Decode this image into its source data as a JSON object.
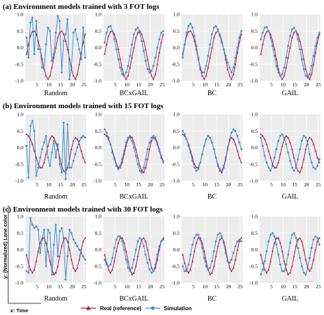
{
  "figure": {
    "y_axis_label": "y: (Normalized) Lane color",
    "x_axis_label": "x: Time",
    "legend": [
      {
        "label": "Real (reference)",
        "color": "#b0134b",
        "marker": "triangle"
      },
      {
        "label": "Simulation",
        "color": "#3a8dc8",
        "marker": "circle"
      }
    ],
    "colors": {
      "real": "#b0134b",
      "sim": "#3a8dc8",
      "panel_bg": "#ececec",
      "grid": "#ffffff"
    }
  },
  "chart_data": [
    {
      "section": "(a) Environment models trained with 3 FOT logs",
      "type": "line",
      "xlim": [
        0,
        26
      ],
      "ylim": [
        -1.0,
        1.0
      ],
      "x_ticks": [
        "5",
        "10",
        "15",
        "20",
        "25"
      ],
      "y_ticks": [
        "1.0",
        "0.5",
        "0.0",
        "-0.5",
        "-1.0"
      ],
      "real": [
        -0.2,
        0.1,
        0.35,
        0.48,
        0.5,
        0.4,
        0.2,
        -0.05,
        -0.35,
        -0.65,
        -0.85,
        -0.95,
        -0.85,
        -0.6,
        -0.3,
        0.0,
        0.3,
        0.45,
        0.5,
        0.4,
        0.2,
        -0.05,
        -0.35,
        -0.65,
        -0.85,
        -0.95,
        -0.8,
        -0.5,
        -0.15,
        0.15,
        0.4
      ],
      "panels": [
        {
          "label": "Random",
          "sim": [
            0.3,
            -0.3,
            0.75,
            0.9,
            -0.2,
            0.8,
            -0.05,
            -0.05,
            -0.6,
            -0.65,
            0.1,
            0.6,
            0.5,
            -0.4,
            -0.2,
            0.45,
            0.95,
            0.8,
            -0.75,
            0.2,
            0.4,
            0.85,
            -0.95,
            -0.6,
            0.45,
            0.55,
            0.25,
            -0.05,
            -0.35,
            0.6,
            -0.3
          ]
        },
        {
          "label": "BCxGAIL",
          "sim": [
            0.15,
            0.45,
            0.62,
            0.65,
            0.5,
            0.25,
            -0.05,
            -0.35,
            -0.6,
            -0.8,
            -0.85,
            -0.75,
            -0.55,
            -0.25,
            0.1,
            0.4,
            0.55,
            0.6,
            0.45,
            0.2,
            -0.1,
            -0.4,
            -0.65,
            -0.75,
            -0.7,
            -0.55,
            -0.3,
            0.0,
            0.25,
            0.45,
            0.5
          ]
        },
        {
          "label": "BC",
          "sim": [
            -0.3,
            0.1,
            0.45,
            0.65,
            0.72,
            0.6,
            0.35,
            0.05,
            -0.3,
            -0.6,
            -0.75,
            -0.75,
            -0.55,
            -0.25,
            0.1,
            0.4,
            0.6,
            0.65,
            0.55,
            0.35,
            0.15,
            -0.05,
            -0.25,
            -0.45,
            -0.6,
            -0.75,
            -0.6,
            -0.3,
            0.0,
            0.3,
            0.5
          ]
        },
        {
          "label": "GAIL",
          "sim": [
            0.25,
            0.45,
            0.6,
            0.62,
            0.5,
            0.3,
            0.05,
            -0.25,
            -0.55,
            -0.75,
            -0.85,
            -0.8,
            -0.6,
            -0.3,
            0.05,
            0.35,
            0.55,
            0.6,
            0.5,
            0.25,
            -0.05,
            -0.35,
            -0.65,
            -0.85,
            -0.9,
            -0.8,
            -0.55,
            -0.25,
            0.05,
            0.3,
            0.45
          ]
        }
      ]
    },
    {
      "section": "(b) Environment models trained with 15 FOT logs",
      "type": "line",
      "xlim": [
        0,
        26
      ],
      "ylim": [
        -1.0,
        1.0
      ],
      "x_ticks": [
        "5",
        "10",
        "15",
        "20",
        "25"
      ],
      "y_ticks": [
        "1.0",
        "0.5",
        "0.0",
        "-0.5",
        "-1.0"
      ],
      "real": [
        0.4,
        0.35,
        0.25,
        0.1,
        -0.1,
        -0.3,
        -0.5,
        -0.6,
        -0.6,
        -0.45,
        -0.2,
        0.05,
        0.25,
        0.35,
        0.3,
        0.15,
        -0.05,
        -0.3,
        -0.55,
        -0.7,
        -0.75,
        -0.6,
        -0.35,
        -0.05,
        0.2,
        0.3,
        0.25,
        0.1,
        -0.1,
        -0.3,
        -0.45
      ],
      "panels": [
        {
          "label": "Random",
          "sim": [
            0.05,
            -0.9,
            0.65,
            0.8,
            0.5,
            -0.85,
            -0.6,
            -0.3,
            -0.05,
            0.15,
            0.35,
            -0.3,
            -0.55,
            -0.15,
            0.2,
            -0.3,
            0.1,
            -0.5,
            -0.75,
            0.75,
            -0.95,
            0.7,
            -0.6,
            -0.6,
            -0.4,
            -0.2,
            0.0,
            0.2,
            0.3,
            0.35,
            0.3
          ]
        },
        {
          "label": "BCxGAIL",
          "sim": [
            0.55,
            0.45,
            0.3,
            0.1,
            -0.15,
            -0.35,
            -0.55,
            -0.65,
            -0.55,
            -0.35,
            -0.1,
            0.15,
            0.3,
            0.3,
            0.2,
            0.0,
            -0.25,
            -0.5,
            -0.7,
            -0.75,
            -0.6,
            -0.35,
            -0.05,
            0.15,
            0.3,
            0.35,
            0.3,
            0.15,
            -0.05,
            -0.25,
            -0.4
          ]
        },
        {
          "label": "BC",
          "sim": [
            0.5,
            0.4,
            0.25,
            0.05,
            -0.15,
            -0.4,
            -0.6,
            -0.7,
            -0.65,
            -0.45,
            -0.2,
            0.05,
            0.25,
            0.35,
            0.3,
            0.15,
            -0.05,
            -0.3,
            -0.5,
            -0.65,
            -0.7,
            -0.55,
            -0.3,
            0.0,
            0.25,
            0.45,
            0.55,
            0.5,
            0.35,
            0.15,
            -0.05
          ]
        },
        {
          "label": "GAIL",
          "sim": [
            0.3,
            0.05,
            -0.25,
            -0.45,
            -0.6,
            -0.7,
            -0.55,
            -0.3,
            -0.05,
            0.2,
            0.35,
            0.4,
            0.3,
            0.1,
            -0.15,
            -0.4,
            -0.6,
            -0.7,
            -0.6,
            -0.35,
            -0.05,
            0.2,
            0.35,
            0.3,
            0.1,
            -0.2,
            -0.45,
            -0.6,
            -0.65,
            -0.55,
            -0.35
          ]
        }
      ]
    },
    {
      "section": "(c) Environment models trained with 30 FOT logs",
      "type": "line",
      "xlim": [
        0,
        26
      ],
      "ylim": [
        -1.0,
        1.0
      ],
      "x_ticks": [
        "5",
        "10",
        "15",
        "20",
        "25"
      ],
      "y_ticks": [
        "1.0",
        "0.5",
        "0.0",
        "-0.5",
        "-1.0"
      ],
      "real": [
        -0.15,
        -0.4,
        -0.6,
        -0.7,
        -0.6,
        -0.35,
        -0.05,
        0.2,
        0.35,
        0.35,
        0.2,
        -0.05,
        -0.35,
        -0.6,
        -0.75,
        -0.7,
        -0.5,
        -0.2,
        0.1,
        0.3,
        0.35,
        0.25,
        0.0,
        -0.3,
        -0.55,
        -0.65,
        -0.55,
        -0.3,
        0.0,
        0.25,
        0.35
      ],
      "panels": [
        {
          "label": "Random",
          "sim": [
            -0.65,
            -0.7,
            0.95,
            0.75,
            0.65,
            0.7,
            0.6,
            -0.1,
            0.3,
            0.6,
            -0.5,
            0.6,
            0.5,
            -0.75,
            0.15,
            0.75,
            -0.2,
            0.55,
            0.65,
            0.35,
            -0.9,
            -0.2,
            0.6,
            0.5,
            0.3,
            0.2,
            0.1,
            0.0,
            -0.1,
            -0.2,
            -0.3
          ]
        },
        {
          "label": "BCxGAIL",
          "sim": [
            -0.3,
            -0.45,
            -0.5,
            -0.45,
            -0.25,
            0.05,
            0.3,
            0.4,
            0.4,
            0.25,
            0.0,
            -0.3,
            -0.55,
            -0.65,
            -0.55,
            -0.3,
            0.0,
            0.25,
            0.35,
            0.3,
            0.1,
            -0.15,
            -0.4,
            -0.6,
            -0.7,
            -0.65,
            -0.45,
            -0.15,
            0.1,
            0.25,
            0.3
          ]
        },
        {
          "label": "BC",
          "sim": [
            -0.5,
            -0.65,
            -0.65,
            -0.45,
            -0.15,
            0.15,
            0.35,
            0.45,
            0.45,
            0.3,
            0.05,
            -0.25,
            -0.5,
            -0.6,
            -0.55,
            -0.35,
            -0.05,
            0.25,
            0.45,
            0.5,
            0.4,
            0.2,
            -0.1,
            -0.35,
            -0.4,
            -0.3,
            -0.1,
            0.1,
            0.25,
            0.3,
            0.25
          ]
        },
        {
          "label": "GAIL",
          "sim": [
            -0.75,
            -0.6,
            -0.35,
            -0.05,
            0.25,
            0.45,
            0.5,
            0.4,
            0.15,
            -0.15,
            -0.45,
            -0.65,
            -0.65,
            -0.45,
            -0.15,
            0.2,
            0.45,
            0.5,
            0.35,
            0.05,
            -0.25,
            -0.5,
            -0.7,
            -0.75,
            -0.55,
            -0.25,
            0.05,
            0.3,
            0.4,
            0.35,
            0.15
          ]
        }
      ]
    }
  ]
}
